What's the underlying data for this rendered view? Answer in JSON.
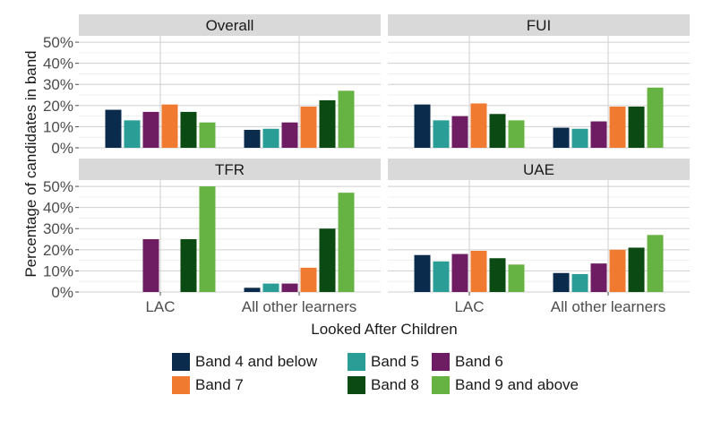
{
  "chart_data": {
    "type": "bar",
    "xlabel": "Looked After Children",
    "ylabel": "Percentage of candidates in band",
    "categories": [
      "LAC",
      "All other learners"
    ],
    "y_ticks": [
      "0%",
      "10%",
      "20%",
      "30%",
      "40%",
      "50%"
    ],
    "ylim": [
      0,
      53
    ],
    "grid": true,
    "legend_position": "bottom",
    "series_names": [
      "Band 4 and below",
      "Band 5",
      "Band 6",
      "Band 7",
      "Band 8",
      "Band 9 and above"
    ],
    "colors": [
      "#0b2b4c",
      "#2a9d96",
      "#6e1d63",
      "#f07a30",
      "#0b4a12",
      "#66b243"
    ],
    "panels": [
      {
        "title": "Overall",
        "series": [
          {
            "name": "Band 4 and below",
            "values": [
              18,
              8.5
            ]
          },
          {
            "name": "Band 5",
            "values": [
              13,
              9
            ]
          },
          {
            "name": "Band 6",
            "values": [
              17,
              12
            ]
          },
          {
            "name": "Band 7",
            "values": [
              20.5,
              19.5
            ]
          },
          {
            "name": "Band 8",
            "values": [
              17,
              22.5
            ]
          },
          {
            "name": "Band 9 and above",
            "values": [
              12,
              27
            ]
          }
        ]
      },
      {
        "title": "FUI",
        "series": [
          {
            "name": "Band 4 and below",
            "values": [
              20.5,
              9.5
            ]
          },
          {
            "name": "Band 5",
            "values": [
              13,
              9
            ]
          },
          {
            "name": "Band 6",
            "values": [
              15,
              12.5
            ]
          },
          {
            "name": "Band 7",
            "values": [
              21,
              19.5
            ]
          },
          {
            "name": "Band 8",
            "values": [
              16,
              19.5
            ]
          },
          {
            "name": "Band 9 and above",
            "values": [
              13,
              28.5
            ]
          }
        ]
      },
      {
        "title": "TFR",
        "series": [
          {
            "name": "Band 4 and below",
            "values": [
              0,
              2
            ]
          },
          {
            "name": "Band 5",
            "values": [
              0,
              4
            ]
          },
          {
            "name": "Band 6",
            "values": [
              25,
              4
            ]
          },
          {
            "name": "Band 7",
            "values": [
              0,
              11.5
            ]
          },
          {
            "name": "Band 8",
            "values": [
              25,
              30
            ]
          },
          {
            "name": "Band 9 and above",
            "values": [
              50,
              47
            ]
          }
        ]
      },
      {
        "title": "UAE",
        "series": [
          {
            "name": "Band 4 and below",
            "values": [
              17.5,
              9
            ]
          },
          {
            "name": "Band 5",
            "values": [
              14.5,
              8.5
            ]
          },
          {
            "name": "Band 6",
            "values": [
              18,
              13.5
            ]
          },
          {
            "name": "Band 7",
            "values": [
              19.5,
              20
            ]
          },
          {
            "name": "Band 8",
            "values": [
              16,
              21
            ]
          },
          {
            "name": "Band 9 and above",
            "values": [
              13,
              27
            ]
          }
        ]
      }
    ]
  }
}
